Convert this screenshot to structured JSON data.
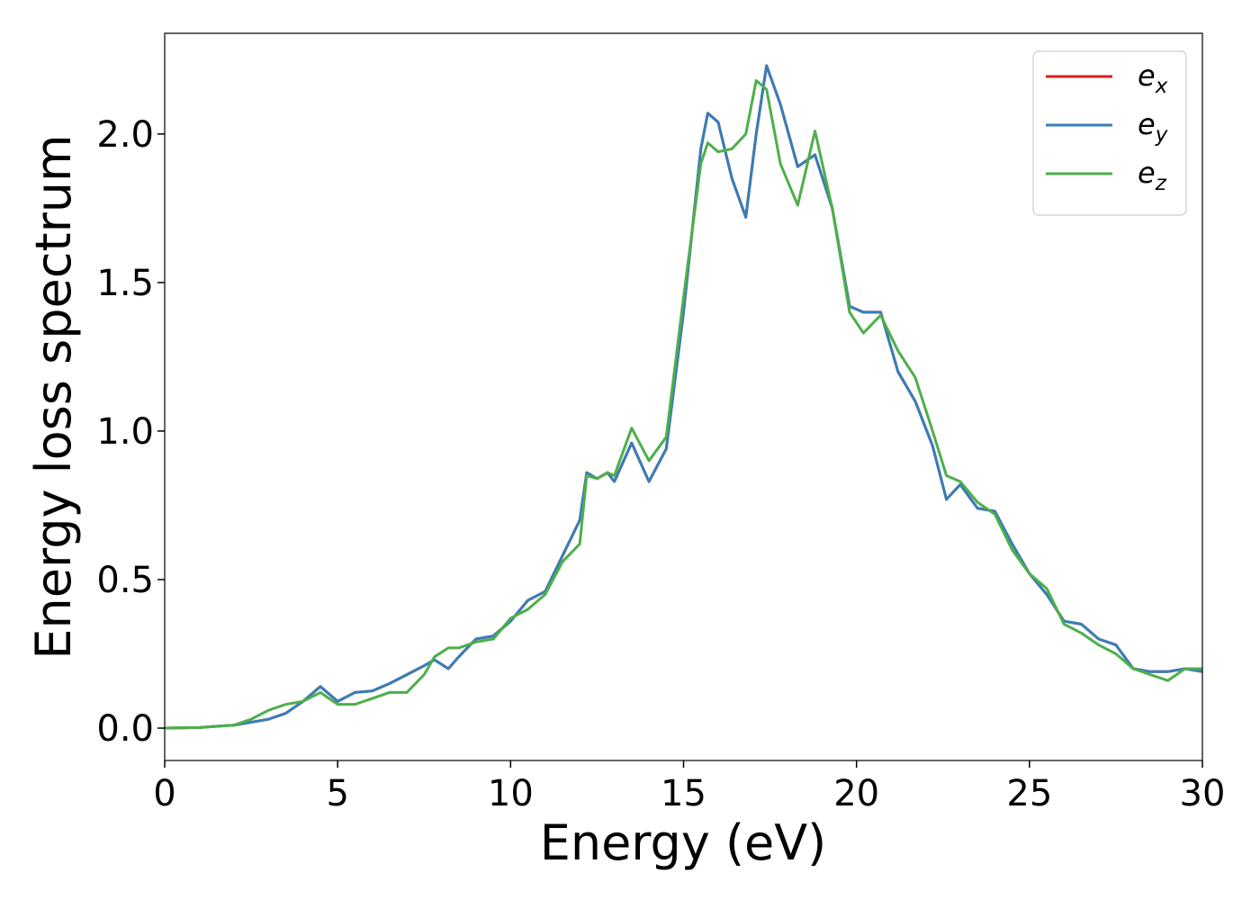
{
  "chart_data": {
    "type": "line",
    "xlabel": "Energy (eV)",
    "ylabel": "Energy loss spectrum",
    "x": [
      0,
      1,
      2,
      2.5,
      3,
      3.5,
      4,
      4.5,
      5,
      5.5,
      6,
      6.5,
      7,
      7.5,
      7.8,
      8.2,
      8.5,
      9,
      9.5,
      10,
      10.5,
      11,
      11.5,
      12,
      12.2,
      12.5,
      12.8,
      13,
      13.5,
      14,
      14.5,
      15,
      15.5,
      15.7,
      16,
      16.4,
      16.8,
      17.1,
      17.4,
      17.8,
      18.3,
      18.8,
      19.3,
      19.8,
      20.2,
      20.7,
      21.2,
      21.7,
      22.2,
      22.6,
      23,
      23.5,
      24,
      24.5,
      25,
      25.5,
      26,
      26.5,
      27,
      27.5,
      28,
      28.5,
      29,
      29.5,
      30
    ],
    "series": [
      {
        "name": "ex",
        "color": "#e41a1c",
        "values": [
          0,
          0.002,
          0.01,
          0.02,
          0.03,
          0.05,
          0.09,
          0.14,
          0.09,
          0.12,
          0.125,
          0.15,
          0.18,
          0.21,
          0.23,
          0.2,
          0.24,
          0.3,
          0.31,
          0.36,
          0.43,
          0.46,
          0.58,
          0.7,
          0.86,
          0.84,
          0.86,
          0.83,
          0.96,
          0.83,
          0.94,
          1.4,
          1.95,
          2.07,
          2.04,
          1.85,
          1.72,
          2.0,
          2.23,
          2.1,
          1.89,
          1.93,
          1.75,
          1.42,
          1.4,
          1.4,
          1.2,
          1.1,
          0.95,
          0.77,
          0.82,
          0.74,
          0.73,
          0.62,
          0.52,
          0.45,
          0.36,
          0.35,
          0.3,
          0.28,
          0.2,
          0.19,
          0.19,
          0.2,
          0.19
        ]
      },
      {
        "name": "ey",
        "color": "#377eb8",
        "values": [
          0,
          0.002,
          0.01,
          0.02,
          0.03,
          0.05,
          0.09,
          0.14,
          0.09,
          0.12,
          0.125,
          0.15,
          0.18,
          0.21,
          0.23,
          0.2,
          0.24,
          0.3,
          0.31,
          0.36,
          0.43,
          0.46,
          0.58,
          0.7,
          0.86,
          0.84,
          0.86,
          0.83,
          0.96,
          0.83,
          0.94,
          1.4,
          1.95,
          2.07,
          2.04,
          1.85,
          1.72,
          2.0,
          2.23,
          2.1,
          1.89,
          1.93,
          1.75,
          1.42,
          1.4,
          1.4,
          1.2,
          1.1,
          0.95,
          0.77,
          0.82,
          0.74,
          0.73,
          0.62,
          0.52,
          0.45,
          0.36,
          0.35,
          0.3,
          0.28,
          0.2,
          0.19,
          0.19,
          0.2,
          0.19
        ]
      },
      {
        "name": "ez",
        "color": "#4daf4a",
        "values": [
          0,
          0.002,
          0.01,
          0.03,
          0.06,
          0.08,
          0.09,
          0.12,
          0.08,
          0.08,
          0.1,
          0.12,
          0.12,
          0.18,
          0.24,
          0.27,
          0.27,
          0.29,
          0.3,
          0.37,
          0.4,
          0.45,
          0.56,
          0.62,
          0.85,
          0.84,
          0.86,
          0.85,
          1.01,
          0.9,
          0.98,
          1.45,
          1.9,
          1.97,
          1.94,
          1.95,
          2.0,
          2.18,
          2.15,
          1.9,
          1.76,
          2.01,
          1.75,
          1.4,
          1.33,
          1.39,
          1.27,
          1.18,
          1.0,
          0.85,
          0.83,
          0.76,
          0.72,
          0.6,
          0.52,
          0.47,
          0.35,
          0.32,
          0.28,
          0.25,
          0.2,
          0.18,
          0.16,
          0.2,
          0.2
        ]
      }
    ],
    "xlim": [
      0,
      30
    ],
    "xticks": [
      0,
      5,
      10,
      15,
      20,
      25,
      30
    ],
    "ylim": [
      -0.109,
      2.339
    ],
    "yticks": [
      {
        "value": 0,
        "label": "0.0"
      },
      {
        "value": 0.5,
        "label": "0.5"
      },
      {
        "value": 1,
        "label": "1.0"
      },
      {
        "value": 1.5,
        "label": "1.5"
      },
      {
        "value": 2,
        "label": "2.0"
      }
    ],
    "legend": "upper right",
    "grid": false
  }
}
